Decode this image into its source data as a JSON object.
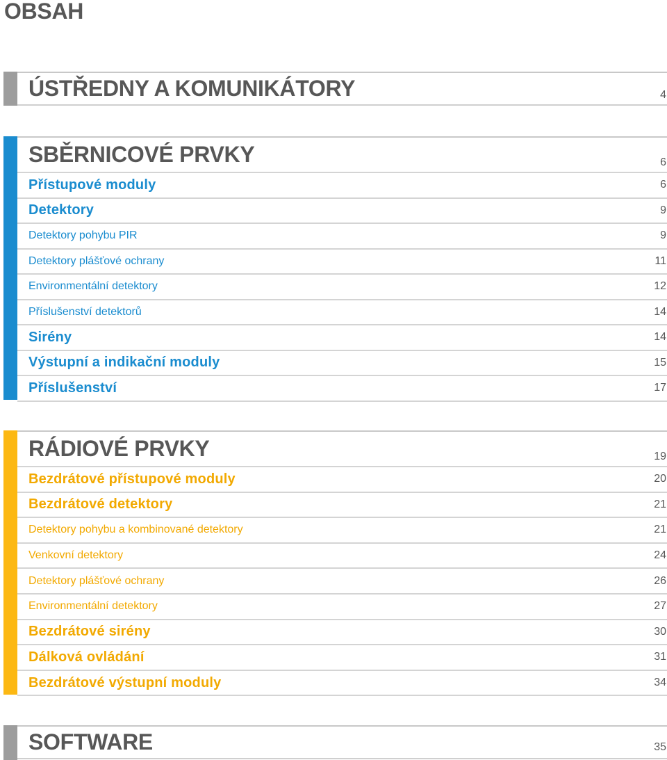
{
  "page_title": "OBSAH",
  "colors": {
    "gray_bar": "#9d9d9d",
    "blue_bar": "#1a8ccf",
    "blue_text": "#1a8ccf",
    "yellow_bar": "#fcb813",
    "yellow_text": "#f2a900",
    "heading_text": "#575757"
  },
  "sections": {
    "komunikatory": {
      "title": "ÚSTŘEDNY A KOMUNIKÁTORY",
      "page": "4"
    },
    "sbernicove": {
      "title": "SBĚRNICOVÉ PRVKY",
      "page": "6",
      "items": [
        {
          "label": "Přístupové moduly",
          "page": "6"
        },
        {
          "label": "Detektory",
          "page": "9"
        },
        {
          "label": "Detektory pohybu PIR",
          "page": "9"
        },
        {
          "label": "Detektory plášťové ochrany",
          "page": "11"
        },
        {
          "label": "Environmentální detektory",
          "page": "12"
        },
        {
          "label": "Příslušenství detektorů",
          "page": "14"
        },
        {
          "label": "Sirény",
          "page": "14"
        },
        {
          "label": "Výstupní a indikační moduly",
          "page": "15"
        },
        {
          "label": "Příslušenství",
          "page": "17"
        }
      ]
    },
    "radiove": {
      "title": "RÁDIOVÉ PRVKY",
      "page": "19",
      "items": [
        {
          "label": "Bezdrátové přístupové moduly",
          "page": "20"
        },
        {
          "label": "Bezdrátové detektory",
          "page": "21"
        },
        {
          "label": "Detektory pohybu a kombinované detektory",
          "page": "21"
        },
        {
          "label": "Venkovní detektory",
          "page": "24"
        },
        {
          "label": "Detektory plášťové ochrany",
          "page": "26"
        },
        {
          "label": "Environmentální detektory",
          "page": "27"
        },
        {
          "label": "Bezdrátové sirény",
          "page": "30"
        },
        {
          "label": "Dálková ovládání",
          "page": "31"
        },
        {
          "label": "Bezdrátové výstupní moduly",
          "page": "34"
        }
      ]
    },
    "software": {
      "title": "SOFTWARE",
      "page": "35"
    }
  }
}
